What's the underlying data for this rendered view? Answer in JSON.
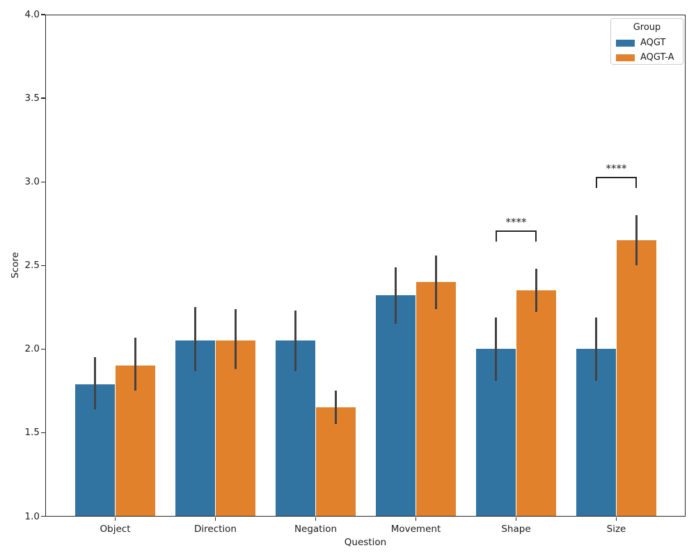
{
  "chart_data": {
    "type": "bar",
    "title": "",
    "xlabel": "Question",
    "ylabel": "Score",
    "ylim": [
      1.0,
      4.0
    ],
    "ytick_labels": [
      "4.0",
      "3.5",
      "3.0",
      "2.5",
      "2.0",
      "1.5",
      "1.0"
    ],
    "categories": [
      "Object",
      "Direction",
      "Negation",
      "Movement",
      "Shape",
      "Size"
    ],
    "series": [
      {
        "name": "AQGT",
        "color": "#3274a1",
        "values": [
          1.79,
          2.05,
          2.05,
          2.32,
          2.0,
          2.0
        ],
        "ci_low": [
          1.64,
          1.87,
          1.87,
          2.15,
          1.81,
          1.81
        ],
        "ci_high": [
          1.95,
          2.25,
          2.23,
          2.49,
          2.19,
          2.19
        ]
      },
      {
        "name": "AQGT-A",
        "color": "#e1812c",
        "values": [
          1.9,
          2.05,
          1.65,
          2.4,
          2.35,
          2.65
        ],
        "ci_low": [
          1.75,
          1.88,
          1.55,
          2.24,
          2.22,
          2.5
        ],
        "ci_high": [
          2.07,
          2.24,
          1.75,
          2.56,
          2.48,
          2.8
        ]
      }
    ],
    "error_bar_color": "#424242",
    "significance": [
      {
        "category": "Shape",
        "label": "****",
        "y": 2.71
      },
      {
        "category": "Size",
        "label": "****",
        "y": 3.03
      }
    ],
    "legend": {
      "title": "Group",
      "position": "upper right"
    },
    "grid": false
  }
}
